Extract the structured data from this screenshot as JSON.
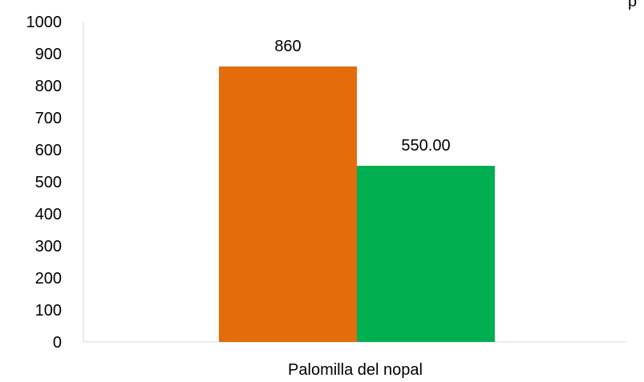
{
  "chart_data": {
    "type": "bar",
    "categories": [
      "Palomilla del nopal"
    ],
    "series": [
      {
        "values": [
          860
        ],
        "value_labels": [
          "860"
        ],
        "color": "#E46C0A"
      },
      {
        "values": [
          550
        ],
        "value_labels": [
          "550.00"
        ],
        "color": "#00B050"
      }
    ],
    "ylim": [
      0,
      1000
    ],
    "yticks": [
      0,
      100,
      200,
      300,
      400,
      500,
      600,
      700,
      800,
      900,
      1000
    ],
    "ytick_labels": [
      "0",
      "100",
      "200",
      "300",
      "400",
      "500",
      "600",
      "700",
      "800",
      "900",
      "1000"
    ],
    "grid": false,
    "legend": "none",
    "title": "",
    "xlabel": "",
    "ylabel": "",
    "top_right_fragment": "p"
  }
}
